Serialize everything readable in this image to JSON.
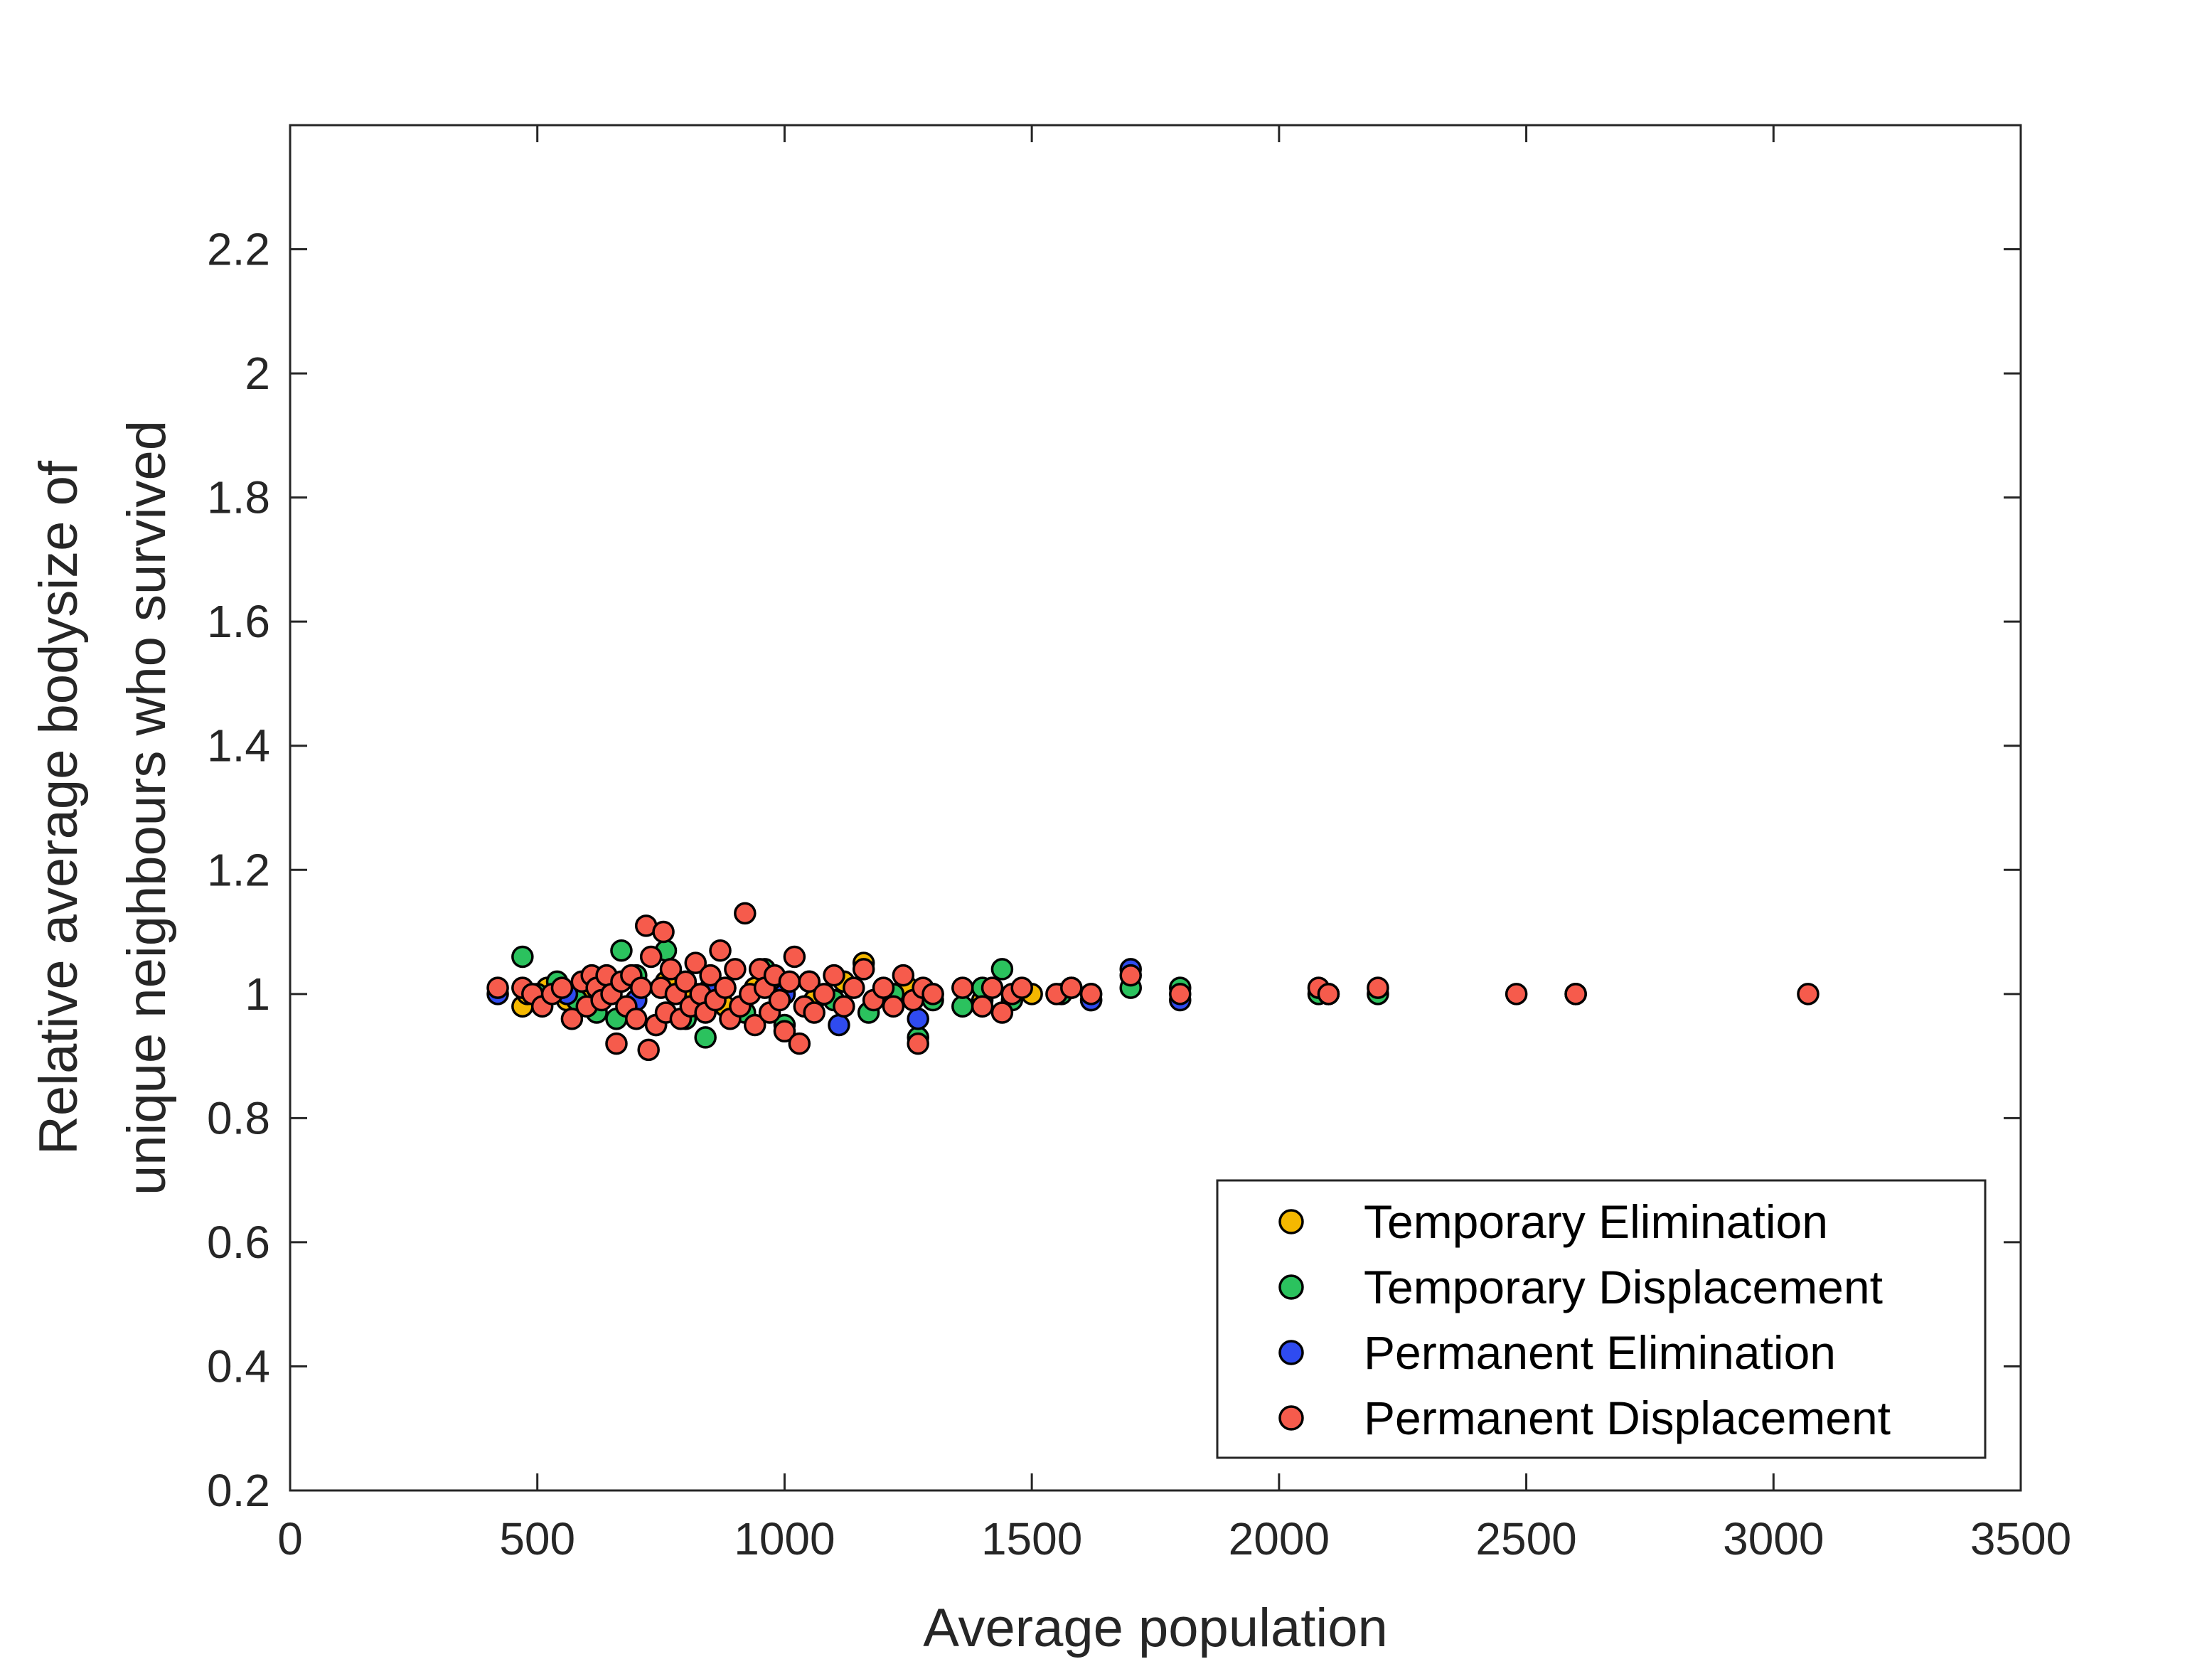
{
  "chart_data": {
    "type": "scatter",
    "title": "",
    "xlabel": "Average population",
    "ylabel_lines": [
      "Relative average bodysize of",
      "unique neighbours who survived"
    ],
    "xlim": [
      0,
      3500
    ],
    "ylim": [
      0.2,
      2.4
    ],
    "xticks": [
      0,
      500,
      1000,
      1500,
      2000,
      2500,
      3000,
      3500
    ],
    "yticks": [
      0.2,
      0.4,
      0.6,
      0.8,
      1,
      1.2,
      1.4,
      1.6,
      1.8,
      2,
      2.2
    ],
    "ytick_labels": [
      "0.2",
      "0.4",
      "0.6",
      "0.8",
      "1",
      "1.2",
      "1.4",
      "1.6",
      "1.8",
      "2",
      "2.2"
    ],
    "xtick_labels": [
      "0",
      "500",
      "1000",
      "1500",
      "2000",
      "2500",
      "3000",
      "3500"
    ],
    "grid": false,
    "legend_position": "bottom-right",
    "series": [
      {
        "name": "Temporary Elimination",
        "color": "#F5B800",
        "points": [
          [
            470,
            0.98
          ],
          [
            480,
            1.0
          ],
          [
            520,
            1.01
          ],
          [
            560,
            0.99
          ],
          [
            600,
            1.0
          ],
          [
            650,
            1.01
          ],
          [
            700,
            0.99
          ],
          [
            760,
            1.02
          ],
          [
            820,
            1.0
          ],
          [
            880,
            0.98
          ],
          [
            940,
            1.01
          ],
          [
            1000,
            1.0
          ],
          [
            1060,
            0.99
          ],
          [
            1120,
            1.02
          ],
          [
            1160,
            1.05
          ],
          [
            1200,
            1.0
          ],
          [
            1250,
            1.01
          ],
          [
            1300,
            1.0
          ],
          [
            1400,
            0.99
          ],
          [
            1500,
            1.0
          ],
          [
            1620,
            1.0
          ],
          [
            2100,
            1.0
          ]
        ]
      },
      {
        "name": "Temporary Displacement",
        "color": "#2BC25E",
        "points": [
          [
            470,
            1.06
          ],
          [
            500,
            1.0
          ],
          [
            540,
            1.02
          ],
          [
            580,
            0.99
          ],
          [
            620,
            0.97
          ],
          [
            660,
            0.96
          ],
          [
            670,
            1.07
          ],
          [
            700,
            1.03
          ],
          [
            740,
            0.95
          ],
          [
            760,
            1.07
          ],
          [
            800,
            0.96
          ],
          [
            840,
            0.93
          ],
          [
            880,
            1.01
          ],
          [
            920,
            0.97
          ],
          [
            960,
            1.04
          ],
          [
            1000,
            0.95
          ],
          [
            1050,
            1.02
          ],
          [
            1100,
            0.99
          ],
          [
            1170,
            0.97
          ],
          [
            1220,
            1.0
          ],
          [
            1270,
            0.93
          ],
          [
            1300,
            0.99
          ],
          [
            1360,
            0.98
          ],
          [
            1400,
            1.01
          ],
          [
            1440,
            1.04
          ],
          [
            1460,
            0.99
          ],
          [
            1560,
            1.0
          ],
          [
            1620,
            0.99
          ],
          [
            1700,
            1.01
          ],
          [
            1800,
            1.01
          ],
          [
            2080,
            1.0
          ],
          [
            2200,
            1.0
          ],
          [
            2600,
            1.0
          ]
        ]
      },
      {
        "name": "Permanent Elimination",
        "color": "#2F4BF0",
        "points": [
          [
            420,
            1.0
          ],
          [
            560,
            1.0
          ],
          [
            700,
            0.99
          ],
          [
            850,
            1.01
          ],
          [
            1000,
            1.0
          ],
          [
            1110,
            0.95
          ],
          [
            1270,
            0.96
          ],
          [
            1580,
            1.01
          ],
          [
            1620,
            0.99
          ],
          [
            1700,
            1.04
          ],
          [
            1800,
            0.99
          ],
          [
            2100,
            1.0
          ],
          [
            2600,
            1.0
          ]
        ]
      },
      {
        "name": "Permanent Displacement",
        "color": "#F65B4C",
        "points": [
          [
            420,
            1.01
          ],
          [
            470,
            1.01
          ],
          [
            490,
            1.0
          ],
          [
            510,
            0.98
          ],
          [
            530,
            1.0
          ],
          [
            550,
            1.01
          ],
          [
            570,
            0.96
          ],
          [
            590,
            1.02
          ],
          [
            600,
            0.98
          ],
          [
            610,
            1.03
          ],
          [
            620,
            1.01
          ],
          [
            630,
            0.99
          ],
          [
            640,
            1.03
          ],
          [
            650,
            1.0
          ],
          [
            660,
            0.92
          ],
          [
            670,
            1.02
          ],
          [
            680,
            0.98
          ],
          [
            690,
            1.03
          ],
          [
            700,
            0.96
          ],
          [
            710,
            1.01
          ],
          [
            720,
            1.11
          ],
          [
            725,
            0.91
          ],
          [
            730,
            1.06
          ],
          [
            740,
            0.95
          ],
          [
            750,
            1.01
          ],
          [
            755,
            1.1
          ],
          [
            760,
            0.97
          ],
          [
            770,
            1.04
          ],
          [
            780,
            1.0
          ],
          [
            790,
            0.96
          ],
          [
            800,
            1.02
          ],
          [
            810,
            0.98
          ],
          [
            820,
            1.05
          ],
          [
            830,
            1.0
          ],
          [
            840,
            0.97
          ],
          [
            850,
            1.03
          ],
          [
            860,
            0.99
          ],
          [
            870,
            1.07
          ],
          [
            880,
            1.01
          ],
          [
            890,
            0.96
          ],
          [
            900,
            1.04
          ],
          [
            910,
            0.98
          ],
          [
            920,
            1.13
          ],
          [
            930,
            1.0
          ],
          [
            940,
            0.95
          ],
          [
            950,
            1.04
          ],
          [
            960,
            1.01
          ],
          [
            970,
            0.97
          ],
          [
            980,
            1.03
          ],
          [
            990,
            0.99
          ],
          [
            1000,
            0.94
          ],
          [
            1010,
            1.02
          ],
          [
            1020,
            1.06
          ],
          [
            1030,
            0.92
          ],
          [
            1040,
            0.98
          ],
          [
            1050,
            1.02
          ],
          [
            1060,
            0.97
          ],
          [
            1080,
            1.0
          ],
          [
            1100,
            1.03
          ],
          [
            1120,
            0.98
          ],
          [
            1140,
            1.01
          ],
          [
            1160,
            1.04
          ],
          [
            1180,
            0.99
          ],
          [
            1200,
            1.01
          ],
          [
            1220,
            0.98
          ],
          [
            1240,
            1.03
          ],
          [
            1260,
            0.99
          ],
          [
            1270,
            0.92
          ],
          [
            1280,
            1.01
          ],
          [
            1300,
            1.0
          ],
          [
            1360,
            1.01
          ],
          [
            1400,
            0.98
          ],
          [
            1420,
            1.01
          ],
          [
            1440,
            0.97
          ],
          [
            1460,
            1.0
          ],
          [
            1480,
            1.01
          ],
          [
            1550,
            1.0
          ],
          [
            1580,
            1.01
          ],
          [
            1620,
            1.0
          ],
          [
            1700,
            1.03
          ],
          [
            1800,
            1.0
          ],
          [
            2080,
            1.01
          ],
          [
            2100,
            1.0
          ],
          [
            2200,
            1.01
          ],
          [
            2480,
            1.0
          ],
          [
            2600,
            1.0
          ],
          [
            3070,
            1.0
          ]
        ]
      }
    ]
  }
}
